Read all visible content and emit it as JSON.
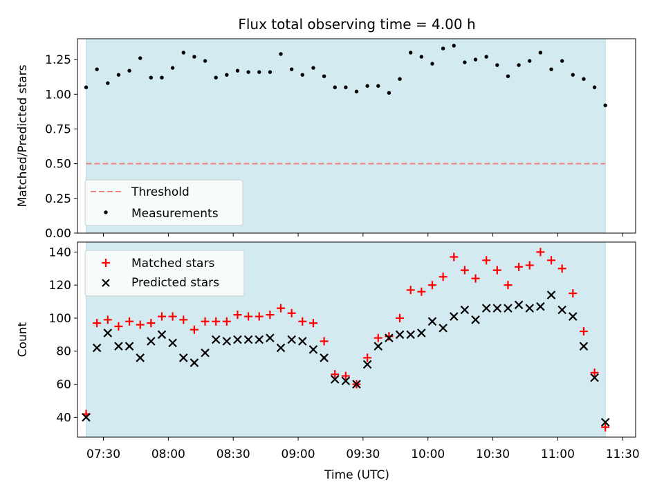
{
  "title": "Flux total observing time = 4.00 h",
  "xlabel": "Time (UTC)",
  "x_ticks": [
    "07:30",
    "08:00",
    "08:30",
    "09:00",
    "09:30",
    "10:00",
    "10:30",
    "11:00",
    "11:30"
  ],
  "colors": {
    "shade": "#d3eaf0",
    "threshold": "#f08080",
    "measurement": "#000000",
    "matched": "#ff0000",
    "predicted": "#000000"
  },
  "chart_data": [
    {
      "type": "scatter",
      "panel": "top",
      "ylabel": "Matched/Predicted stars",
      "ylim": [
        0.0,
        1.4
      ],
      "y_ticks": [
        "0.00",
        "0.25",
        "0.50",
        "0.75",
        "1.00",
        "1.25"
      ],
      "xlim": [
        "07:18",
        "11:36"
      ],
      "shaded_span": [
        "07:22",
        "11:22"
      ],
      "legend_position": "lower-left",
      "threshold": {
        "label": "Threshold",
        "value": 0.5
      },
      "series": [
        {
          "name": "Measurements",
          "x": [
            "07:22",
            "07:27",
            "07:32",
            "07:37",
            "07:42",
            "07:47",
            "07:52",
            "07:57",
            "08:02",
            "08:07",
            "08:12",
            "08:17",
            "08:22",
            "08:27",
            "08:32",
            "08:37",
            "08:42",
            "08:47",
            "08:52",
            "08:57",
            "09:02",
            "09:07",
            "09:12",
            "09:17",
            "09:22",
            "09:27",
            "09:32",
            "09:37",
            "09:42",
            "09:47",
            "09:52",
            "09:57",
            "10:02",
            "10:07",
            "10:12",
            "10:17",
            "10:22",
            "10:27",
            "10:32",
            "10:37",
            "10:42",
            "10:47",
            "10:52",
            "10:57",
            "11:02",
            "11:07",
            "11:12",
            "11:17",
            "11:22"
          ],
          "y": [
            1.05,
            1.18,
            1.08,
            1.14,
            1.17,
            1.26,
            1.12,
            1.12,
            1.19,
            1.3,
            1.27,
            1.24,
            1.12,
            1.14,
            1.17,
            1.16,
            1.16,
            1.16,
            1.29,
            1.18,
            1.14,
            1.19,
            1.13,
            1.05,
            1.05,
            1.02,
            1.06,
            1.06,
            1.01,
            1.11,
            1.3,
            1.27,
            1.22,
            1.33,
            1.35,
            1.23,
            1.25,
            1.27,
            1.21,
            1.13,
            1.21,
            1.24,
            1.3,
            1.18,
            1.24,
            1.14,
            1.11,
            1.05,
            0.92
          ]
        }
      ]
    },
    {
      "type": "scatter",
      "panel": "bottom",
      "ylabel": "Count",
      "ylim": [
        28,
        146
      ],
      "y_ticks": [
        "40",
        "60",
        "80",
        "100",
        "120",
        "140"
      ],
      "xlim": [
        "07:18",
        "11:36"
      ],
      "shaded_span": [
        "07:22",
        "11:22"
      ],
      "legend_position": "upper-left",
      "x": [
        "07:22",
        "07:27",
        "07:32",
        "07:37",
        "07:42",
        "07:47",
        "07:52",
        "07:57",
        "08:02",
        "08:07",
        "08:12",
        "08:17",
        "08:22",
        "08:27",
        "08:32",
        "08:37",
        "08:42",
        "08:47",
        "08:52",
        "08:57",
        "09:02",
        "09:07",
        "09:12",
        "09:17",
        "09:22",
        "09:27",
        "09:32",
        "09:37",
        "09:42",
        "09:47",
        "09:52",
        "09:57",
        "10:02",
        "10:07",
        "10:12",
        "10:17",
        "10:22",
        "10:27",
        "10:32",
        "10:37",
        "10:42",
        "10:47",
        "10:52",
        "10:57",
        "11:02",
        "11:07",
        "11:12",
        "11:17",
        "11:22"
      ],
      "series": [
        {
          "name": "Matched stars",
          "marker": "+",
          "values": [
            42,
            97,
            99,
            95,
            98,
            96,
            97,
            101,
            101,
            99,
            93,
            98,
            98,
            98,
            102,
            101,
            101,
            102,
            106,
            103,
            98,
            97,
            86,
            66,
            65,
            60,
            76,
            88,
            89,
            100,
            117,
            116,
            120,
            125,
            137,
            129,
            124,
            135,
            129,
            120,
            131,
            132,
            140,
            135,
            130,
            115,
            92,
            67,
            34
          ]
        },
        {
          "name": "Predicted stars",
          "marker": "x",
          "values": [
            40,
            82,
            91,
            83,
            83,
            76,
            86,
            90,
            85,
            76,
            73,
            79,
            87,
            86,
            87,
            87,
            87,
            88,
            82,
            87,
            86,
            81,
            76,
            63,
            62,
            60,
            72,
            83,
            88,
            90,
            90,
            91,
            98,
            94,
            101,
            105,
            99,
            106,
            106,
            106,
            108,
            106,
            107,
            114,
            105,
            101,
            83,
            64,
            37
          ]
        }
      ]
    }
  ]
}
